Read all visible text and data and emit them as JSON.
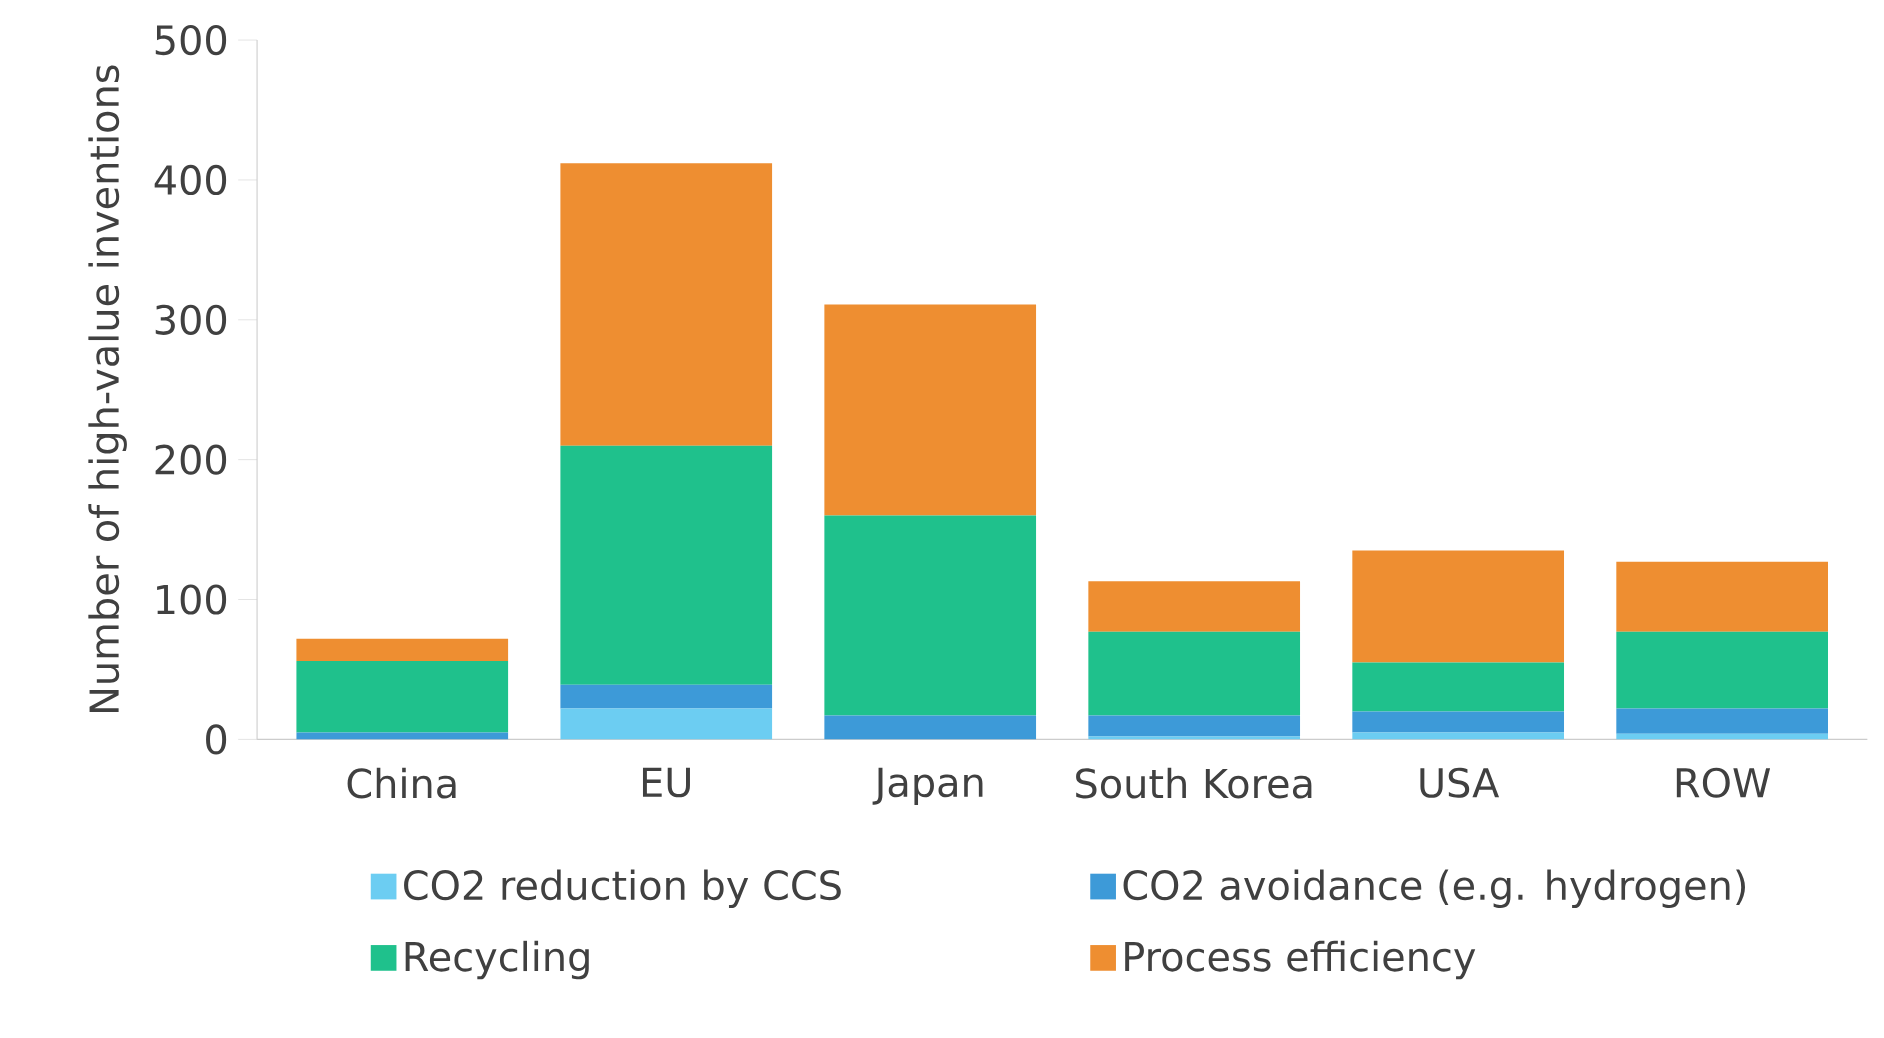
{
  "chart_data": {
    "type": "bar",
    "stacked": true,
    "ylabel": "Number of high-value inventions",
    "categories": [
      "China",
      "EU",
      "Japan",
      "South Korea",
      "USA",
      "ROW"
    ],
    "series": [
      {
        "name": "CO2 reduction by CCS",
        "color": "#6ccdf2",
        "values": [
          0,
          22,
          0,
          2,
          5,
          4
        ]
      },
      {
        "name": "CO2 avoidance (e.g. hydrogen)",
        "color": "#3d9ad8",
        "values": [
          5,
          17,
          17,
          15,
          15,
          18
        ]
      },
      {
        "name": "Recycling",
        "color": "#1fc18c",
        "values": [
          51,
          171,
          143,
          60,
          35,
          55
        ]
      },
      {
        "name": "Process efficiency",
        "color": "#ee8e31",
        "values": [
          16,
          202,
          151,
          36,
          80,
          50
        ]
      }
    ],
    "ylim": [
      0,
      500
    ],
    "yticks": [
      0,
      100,
      200,
      300,
      400,
      500
    ],
    "grid": false,
    "legend": "bottom"
  }
}
